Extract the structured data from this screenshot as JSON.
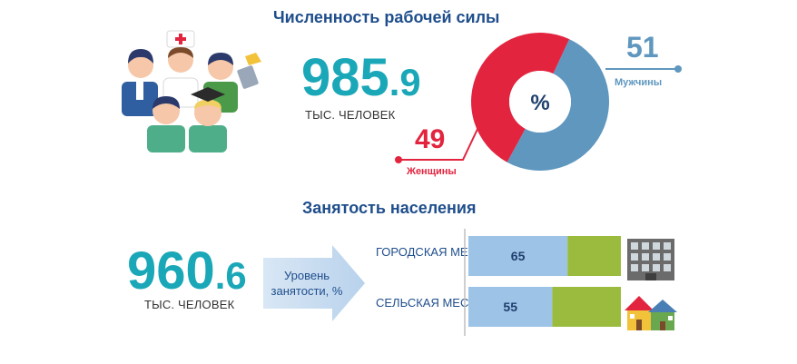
{
  "workforce": {
    "title": "Численность рабочей силы",
    "value_int": "985",
    "value_dec": ".9",
    "unit": "ТЫС. ЧЕЛОВЕК"
  },
  "employment": {
    "title": "Занятость населения",
    "value_int": "960",
    "value_dec": ".6",
    "unit": "ТЫС. ЧЕЛОВЕК",
    "arrow_label": "Уровень занятости, %"
  },
  "chart_data": [
    {
      "type": "pie",
      "center_label": "%",
      "slices": [
        {
          "name": "Мужчины",
          "value": 51,
          "color": "#5f97bf"
        },
        {
          "name": "Женщины",
          "value": 49,
          "color": "#e3243f"
        }
      ]
    },
    {
      "type": "bar",
      "orientation": "horizontal",
      "categories": [
        "ГОРОДСКАЯ МЕСТНОСТЬ",
        "СЕЛЬСКАЯ МЕСТНОСТЬ"
      ],
      "values": [
        65,
        55
      ],
      "xlim": [
        0,
        100
      ],
      "colors": {
        "value": "#9dc3e6",
        "remainder": "#9bbb3f"
      }
    }
  ],
  "icons": {
    "people": "group-of-people-icon",
    "building": "apartment-building-icon",
    "houses": "houses-icon"
  }
}
